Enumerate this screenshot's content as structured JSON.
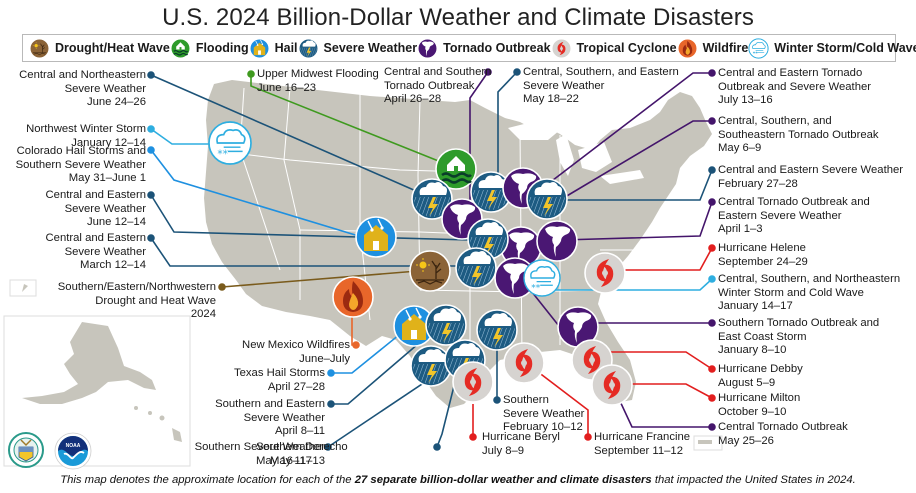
{
  "title": "U.S. 2024 Billion-Dollar Weather and Climate Disasters",
  "colors": {
    "land": "#c7c5bc",
    "border": "#ffffff",
    "drought": "#8b6337",
    "flooding": "#2e9b2b",
    "hail": "#1e90e0",
    "severe": "#1d5b82",
    "tornado": "#4a1773",
    "tropical": "#d6d3d0",
    "tropical_red": "#e52b24",
    "wildfire": "#e8662a",
    "winter": "#2eaee0",
    "line_severe": "#1c5378",
    "line_tornado": "#44156b",
    "line_hurricane": "#e21e1e",
    "line_winter": "#2eaee0",
    "line_hail": "#1e90e0",
    "line_flood": "#3f9a1f",
    "line_drought": "#7a5b1c",
    "line_wildfire": "#e8662a"
  },
  "legend": [
    {
      "icon": "drought-heat-wave-icon",
      "label": "Drought/Heat Wave"
    },
    {
      "icon": "flooding-icon",
      "label": "Flooding"
    },
    {
      "icon": "hail-icon",
      "label": "Hail"
    },
    {
      "icon": "severe-weather-icon",
      "label": "Severe Weather"
    },
    {
      "icon": "tornado-outbreak-icon",
      "label": "Tornado Outbreak"
    },
    {
      "icon": "tropical-cyclone-icon",
      "label": "Tropical Cyclone"
    },
    {
      "icon": "wildfire-icon",
      "label": "Wildfire"
    },
    {
      "icon": "winter-storm-cold-wave-icon",
      "label": "Winter Storm/Cold Wave"
    }
  ],
  "events": [
    {
      "id": "e1",
      "type": "severe",
      "lines": [
        "Central and Northeastern",
        "Severe Weather",
        "June 24–26"
      ]
    },
    {
      "id": "e2",
      "type": "winter",
      "lines": [
        "Northwest Winter Storm",
        "January 12–14"
      ]
    },
    {
      "id": "e3",
      "type": "hail",
      "lines": [
        "Colorado Hail Storms and",
        "Southern Severe Weather",
        "May 31–June 1"
      ]
    },
    {
      "id": "e4",
      "type": "severe",
      "lines": [
        "Central and Eastern",
        "Severe Weather",
        "June 12–14"
      ]
    },
    {
      "id": "e5",
      "type": "severe",
      "lines": [
        "Central and Eastern",
        "Severe Weather",
        "March 12–14"
      ]
    },
    {
      "id": "e6",
      "type": "drought",
      "lines": [
        "Southern/Eastern/Northwestern",
        "Drought and Heat Wave",
        "2024"
      ]
    },
    {
      "id": "e7",
      "type": "wildfire",
      "lines": [
        "New Mexico Wildfires",
        "June–July"
      ]
    },
    {
      "id": "e8",
      "type": "hail",
      "lines": [
        "Texas Hail Storms",
        "April 27–28"
      ]
    },
    {
      "id": "e9",
      "type": "severe",
      "lines": [
        "Southern and Eastern",
        "Severe Weather",
        "April 8–11"
      ]
    },
    {
      "id": "e10",
      "type": "severe",
      "lines": [
        "Southern Severe Weather",
        "May 11–13"
      ]
    },
    {
      "id": "e11",
      "type": "severe",
      "lines": [
        "Southern Derecho",
        "May 16–17"
      ]
    },
    {
      "id": "e12",
      "type": "tropical",
      "lines": [
        "Hurricane Beryl",
        "July 8–9"
      ]
    },
    {
      "id": "e13",
      "type": "severe",
      "lines": [
        "Southern",
        "Severe Weather",
        "February 10–12"
      ]
    },
    {
      "id": "e14",
      "type": "tropical",
      "lines": [
        "Hurricane Francine",
        "September 11–12"
      ]
    },
    {
      "id": "e15",
      "type": "flooding",
      "lines": [
        "Upper Midwest Flooding",
        "June 16–23"
      ]
    },
    {
      "id": "e16",
      "type": "tornado",
      "lines": [
        "Central and Southern",
        "Tornado Outbreak",
        "April 26–28"
      ]
    },
    {
      "id": "e17",
      "type": "severe",
      "lines": [
        "Central, Southern, and Eastern",
        "Severe Weather",
        "May 18–22"
      ]
    },
    {
      "id": "e18",
      "type": "tornado",
      "lines": [
        "Central and Eastern Tornado",
        "Outbreak and Severe Weather",
        "July 13–16"
      ]
    },
    {
      "id": "e19",
      "type": "tornado",
      "lines": [
        "Central, Southern, and",
        "Southeastern Tornado Outbreak",
        "May 6–9"
      ]
    },
    {
      "id": "e20",
      "type": "severe",
      "lines": [
        "Central and Eastern Severe Weather",
        "February 27–28"
      ]
    },
    {
      "id": "e21",
      "type": "tornado",
      "lines": [
        "Central Tornado Outbreak and",
        "Eastern Severe Weather",
        "April 1–3"
      ]
    },
    {
      "id": "e22",
      "type": "tropical",
      "lines": [
        "Hurricane Helene",
        "September 24–29"
      ]
    },
    {
      "id": "e23",
      "type": "winter",
      "lines": [
        "Central, Southern, and Northeastern",
        "Winter Storm and Cold Wave",
        "January 14–17"
      ]
    },
    {
      "id": "e24",
      "type": "tornado",
      "lines": [
        "Southern Tornado Outbreak and",
        "East Coast Storm",
        "January 8–10"
      ]
    },
    {
      "id": "e25",
      "type": "tropical",
      "lines": [
        "Hurricane Debby",
        "August 5–9"
      ]
    },
    {
      "id": "e26",
      "type": "tropical",
      "lines": [
        "Hurricane Milton",
        "October 9–10"
      ]
    },
    {
      "id": "e27",
      "type": "tornado",
      "lines": [
        "Central Tornado Outbreak",
        "May 25–26"
      ]
    }
  ],
  "footer": {
    "pre": "This map denotes the approximate location for each of the ",
    "bold": "27 separate billion-dollar weather and climate disasters",
    "post": " that impacted the United States in 2024."
  },
  "logos": {
    "commerce": "Department of Commerce seal",
    "noaa": "NOAA"
  }
}
